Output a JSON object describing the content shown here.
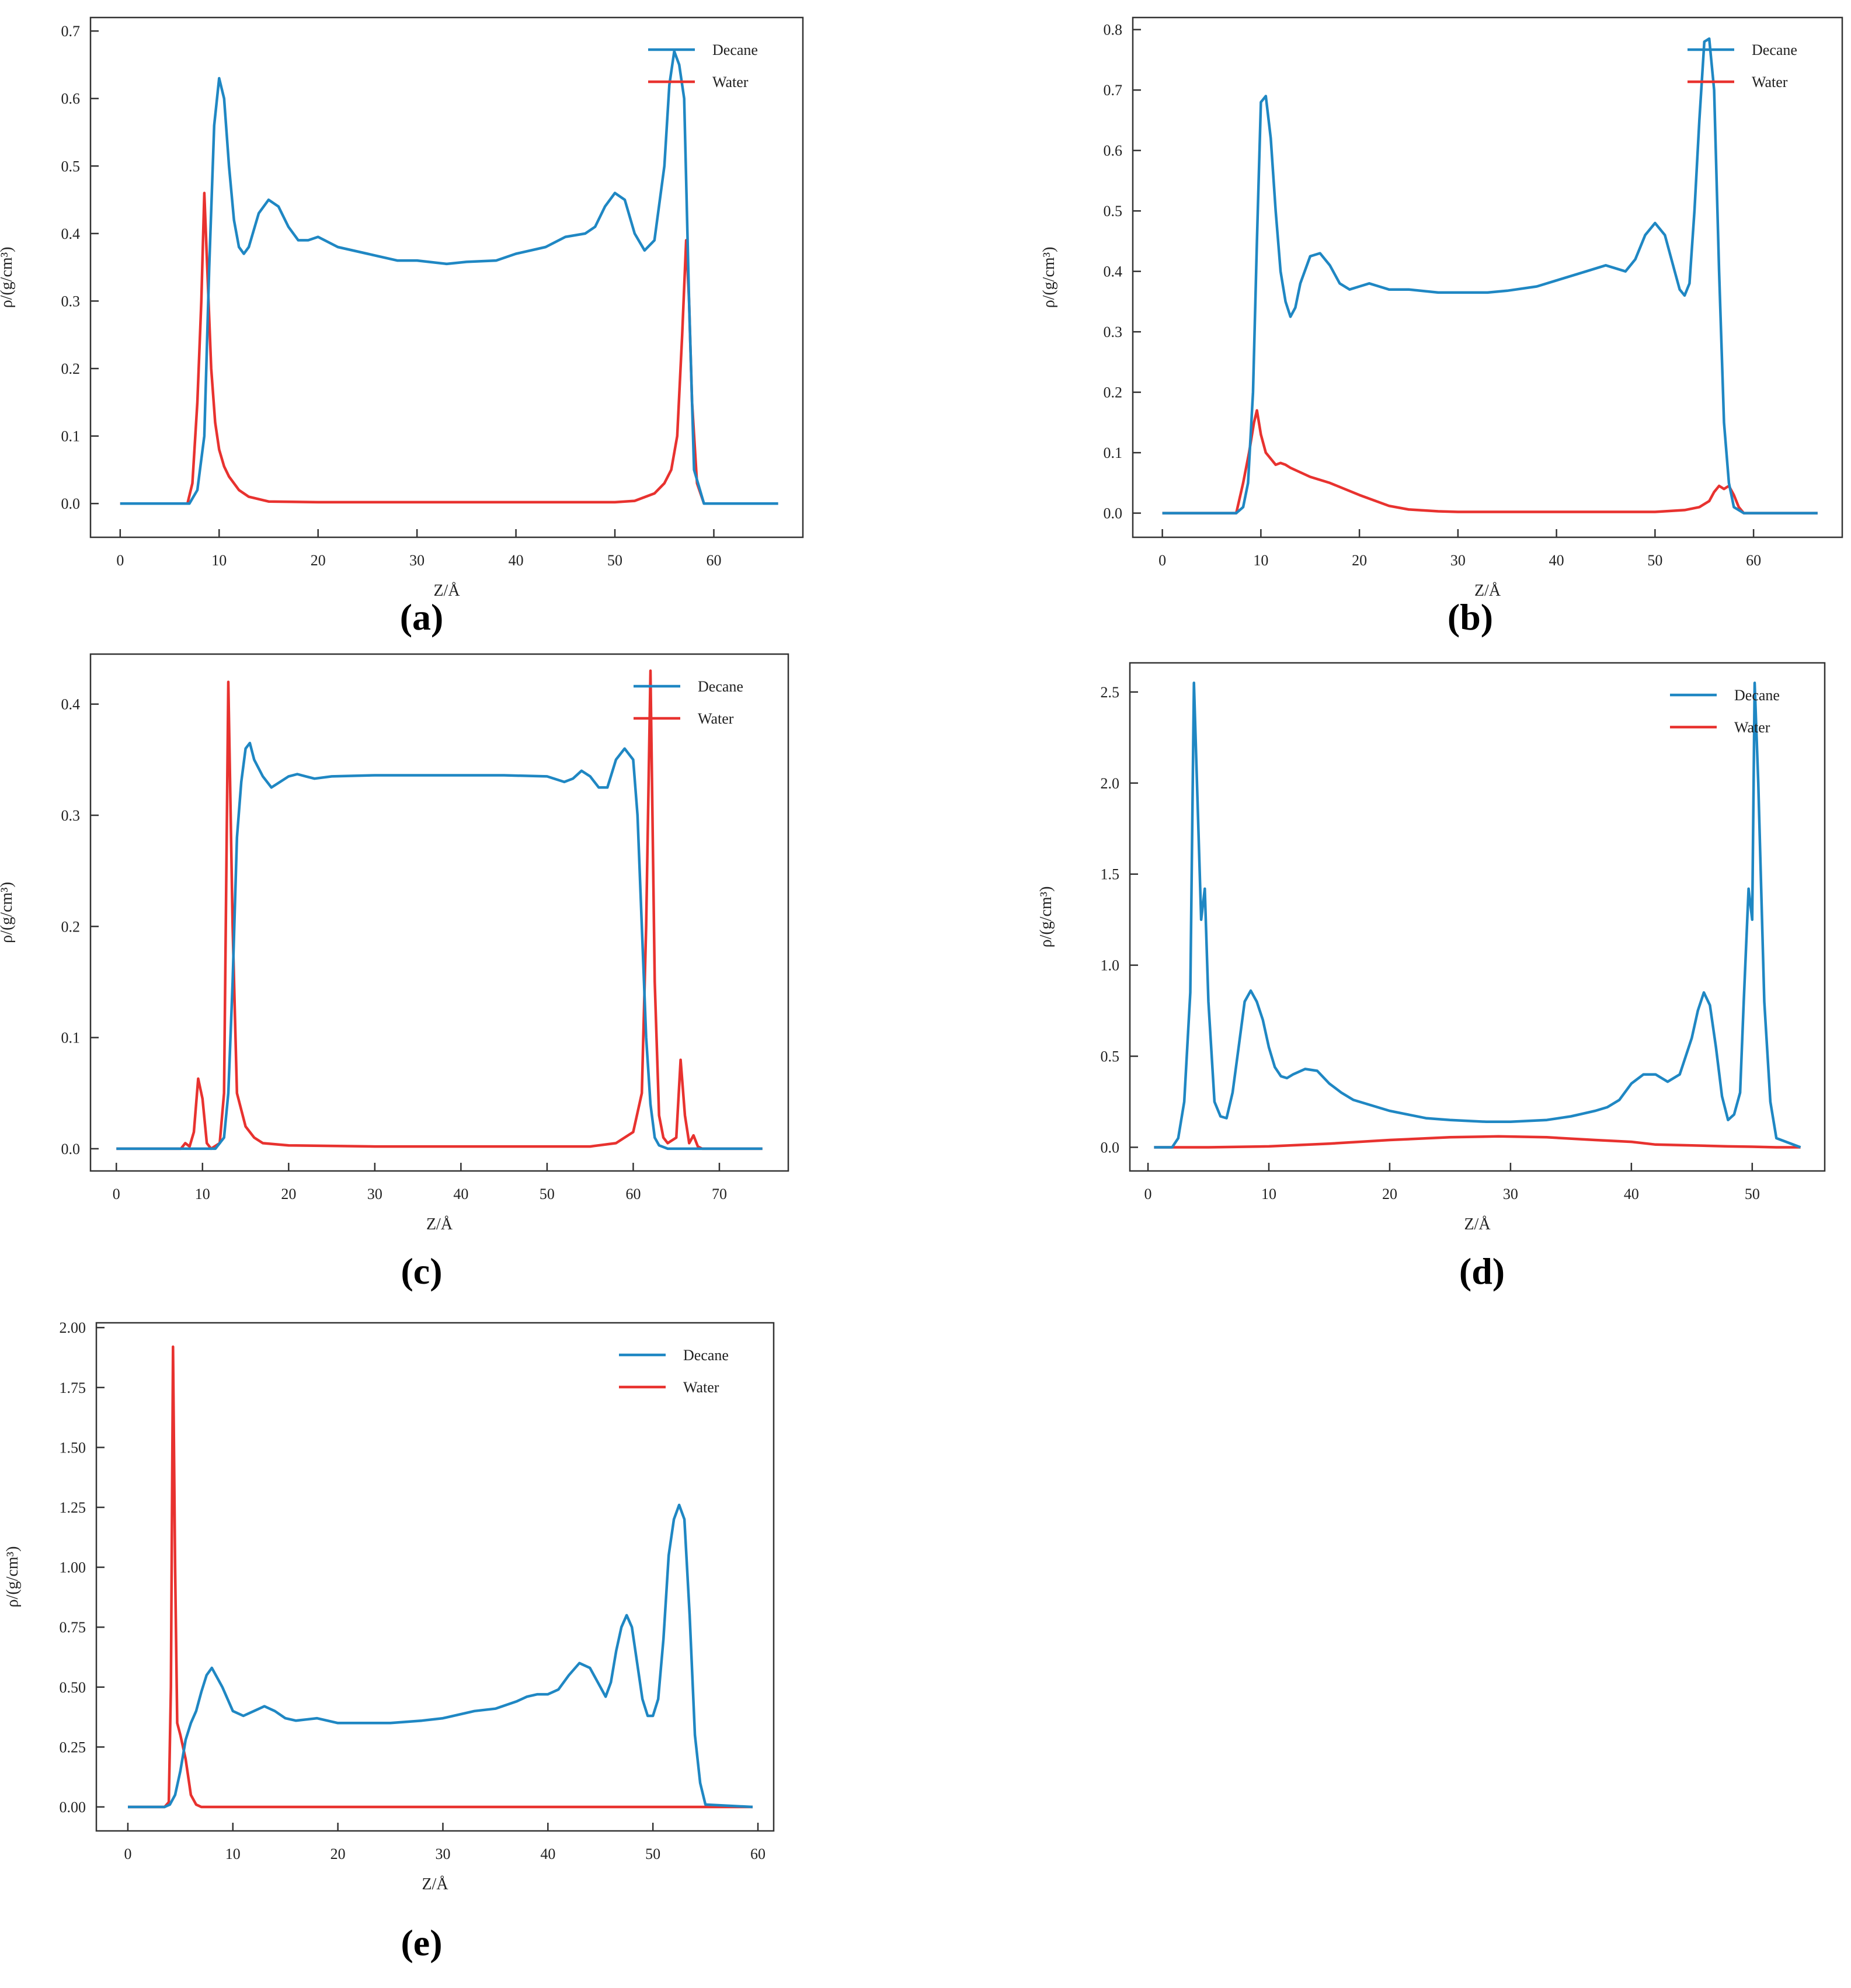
{
  "figure": {
    "panels": [
      {
        "caption": "(a)",
        "ylabel": "ρ/(g/cm³)",
        "xlabel": "Z/Å",
        "legend": [
          "Decane",
          "Water"
        ]
      },
      {
        "caption": "(b)",
        "ylabel": "ρ/(g/cm³)",
        "xlabel": "Z/Å",
        "legend": [
          "Decane",
          "Water"
        ]
      },
      {
        "caption": "(c)",
        "ylabel": "ρ/(g/cm³)",
        "xlabel": "Z/Å",
        "legend": [
          "Decane",
          "Water"
        ]
      },
      {
        "caption": "(d)",
        "ylabel": "ρ/(g/cm³)",
        "xlabel": "Z/Å",
        "legend": [
          "Decane",
          "Water"
        ]
      },
      {
        "caption": "(e)",
        "ylabel": "ρ/(g/cm³)",
        "xlabel": "Z/Å",
        "legend": [
          "Decane",
          "Water"
        ]
      }
    ]
  },
  "colors": {
    "decane": "#1f87c3",
    "water": "#e8322f"
  },
  "chart_data": [
    {
      "type": "line",
      "xlabel": "Z/Å",
      "ylabel": "ρ/(g/cm³)",
      "xlim": [
        -3,
        69
      ],
      "ylim": [
        -0.05,
        0.72
      ],
      "xticks": [
        0,
        10,
        20,
        30,
        40,
        50,
        60
      ],
      "yticks": [
        0.0,
        0.1,
        0.2,
        0.3,
        0.4,
        0.5,
        0.6,
        0.7
      ],
      "yticklabels": [
        "0.0",
        "0.1",
        "0.2",
        "0.3",
        "0.4",
        "0.5",
        "0.6",
        "0.7"
      ],
      "legend": "top-right",
      "series": [
        {
          "name": "Decane",
          "x": [
            0,
            7,
            7.8,
            8.5,
            9,
            9.5,
            10,
            10.5,
            11,
            11.5,
            12,
            12.5,
            13,
            14,
            15,
            16,
            17,
            18,
            19,
            20,
            22,
            25,
            28,
            30,
            33,
            35,
            38,
            40,
            43,
            45,
            47,
            48,
            49,
            50,
            51,
            52,
            53,
            54,
            55,
            55.5,
            56,
            56.5,
            57,
            57.5,
            58,
            59,
            66.5
          ],
          "y": [
            0,
            0,
            0.02,
            0.1,
            0.35,
            0.56,
            0.63,
            0.6,
            0.5,
            0.42,
            0.38,
            0.37,
            0.38,
            0.43,
            0.45,
            0.44,
            0.41,
            0.39,
            0.39,
            0.395,
            0.38,
            0.37,
            0.36,
            0.36,
            0.355,
            0.358,
            0.36,
            0.37,
            0.38,
            0.395,
            0.4,
            0.41,
            0.44,
            0.46,
            0.45,
            0.4,
            0.375,
            0.39,
            0.5,
            0.62,
            0.67,
            0.65,
            0.6,
            0.3,
            0.05,
            0,
            0
          ]
        },
        {
          "name": "Water",
          "x": [
            0,
            6.8,
            7.3,
            7.8,
            8.2,
            8.5,
            8.8,
            9.2,
            9.6,
            10,
            10.5,
            11,
            12,
            13,
            15,
            20,
            30,
            40,
            50,
            52,
            54,
            55,
            55.7,
            56.3,
            56.8,
            57.2,
            57.5,
            57.8,
            58.3,
            59,
            66.5
          ],
          "y": [
            0,
            0,
            0.03,
            0.15,
            0.3,
            0.46,
            0.35,
            0.2,
            0.12,
            0.08,
            0.055,
            0.04,
            0.02,
            0.01,
            0.003,
            0.002,
            0.002,
            0.002,
            0.002,
            0.004,
            0.015,
            0.03,
            0.05,
            0.1,
            0.25,
            0.39,
            0.3,
            0.15,
            0.03,
            0,
            0
          ]
        }
      ]
    },
    {
      "type": "line",
      "xlabel": "Z/Å",
      "ylabel": "ρ/(g/cm³)",
      "xlim": [
        -3,
        69
      ],
      "ylim": [
        -0.04,
        0.82
      ],
      "xticks": [
        0,
        10,
        20,
        30,
        40,
        50,
        60
      ],
      "yticks": [
        0.0,
        0.1,
        0.2,
        0.3,
        0.4,
        0.5,
        0.6,
        0.7,
        0.8
      ],
      "yticklabels": [
        "0.0",
        "0.1",
        "0.2",
        "0.3",
        "0.4",
        "0.5",
        "0.6",
        "0.7",
        "0.8"
      ],
      "legend": "top-right",
      "series": [
        {
          "name": "Decane",
          "x": [
            0,
            7.5,
            8.2,
            8.7,
            9.2,
            9.6,
            10,
            10.5,
            11,
            11.5,
            12,
            12.5,
            13,
            13.5,
            14,
            15,
            16,
            17,
            18,
            19,
            20,
            21,
            22,
            23,
            25,
            28,
            30,
            33,
            35,
            38,
            40,
            43,
            45,
            47,
            48,
            49,
            50,
            51,
            52,
            52.5,
            53,
            53.5,
            54,
            54.5,
            55,
            55.5,
            56,
            56.5,
            57,
            57.5,
            58,
            59,
            66.5
          ],
          "y": [
            0,
            0,
            0.01,
            0.05,
            0.2,
            0.45,
            0.68,
            0.69,
            0.62,
            0.5,
            0.4,
            0.35,
            0.325,
            0.34,
            0.38,
            0.425,
            0.43,
            0.41,
            0.38,
            0.37,
            0.375,
            0.38,
            0.375,
            0.37,
            0.37,
            0.365,
            0.365,
            0.365,
            0.368,
            0.375,
            0.385,
            0.4,
            0.41,
            0.4,
            0.42,
            0.46,
            0.48,
            0.46,
            0.4,
            0.37,
            0.36,
            0.38,
            0.5,
            0.65,
            0.78,
            0.785,
            0.7,
            0.4,
            0.15,
            0.05,
            0.01,
            0,
            0
          ]
        },
        {
          "name": "Water",
          "x": [
            0,
            7.5,
            8.2,
            8.8,
            9.3,
            9.6,
            10,
            10.5,
            11,
            11.5,
            12,
            12.5,
            13,
            15,
            17,
            20,
            23,
            25,
            28,
            30,
            40,
            50,
            53,
            54.5,
            55.5,
            56,
            56.5,
            57,
            57.5,
            58,
            58.5,
            59,
            66.5
          ],
          "y": [
            0,
            0,
            0.05,
            0.1,
            0.15,
            0.17,
            0.13,
            0.1,
            0.09,
            0.08,
            0.083,
            0.08,
            0.075,
            0.06,
            0.05,
            0.03,
            0.012,
            0.006,
            0.003,
            0.002,
            0.002,
            0.002,
            0.005,
            0.01,
            0.02,
            0.035,
            0.045,
            0.04,
            0.045,
            0.03,
            0.01,
            0,
            0
          ]
        }
      ]
    },
    {
      "type": "line",
      "xlabel": "Z/Å",
      "ylabel": "ρ/(g/cm³)",
      "xlim": [
        -3,
        78
      ],
      "ylim": [
        -0.02,
        0.445
      ],
      "xticks": [
        0,
        10,
        20,
        30,
        40,
        50,
        60,
        70
      ],
      "yticks": [
        0.0,
        0.1,
        0.2,
        0.3,
        0.4
      ],
      "yticklabels": [
        "0.0",
        "0.1",
        "0.2",
        "0.3",
        "0.4"
      ],
      "legend": "top-right",
      "series": [
        {
          "name": "Decane",
          "x": [
            0,
            11.5,
            12.5,
            13,
            13.5,
            14,
            14.5,
            15,
            15.5,
            16,
            17,
            18,
            19,
            20,
            21,
            22,
            23,
            25,
            30,
            35,
            40,
            45,
            50,
            52,
            53,
            54,
            55,
            56,
            57,
            58,
            59,
            60,
            60.5,
            61,
            61.5,
            62,
            62.5,
            63,
            64,
            75
          ],
          "y": [
            0,
            0,
            0.01,
            0.05,
            0.15,
            0.28,
            0.33,
            0.36,
            0.365,
            0.35,
            0.335,
            0.325,
            0.33,
            0.335,
            0.337,
            0.335,
            0.333,
            0.335,
            0.336,
            0.336,
            0.336,
            0.336,
            0.335,
            0.33,
            0.333,
            0.34,
            0.335,
            0.325,
            0.325,
            0.35,
            0.36,
            0.35,
            0.3,
            0.2,
            0.1,
            0.04,
            0.01,
            0.003,
            0,
            0
          ]
        },
        {
          "name": "Water",
          "x": [
            0,
            7.5,
            8,
            8.5,
            9,
            9.5,
            10,
            10.5,
            11,
            12,
            12.5,
            13,
            13.5,
            14,
            15,
            16,
            17,
            20,
            30,
            40,
            50,
            55,
            58,
            60,
            61,
            61.5,
            62,
            62.5,
            63,
            63.5,
            64,
            65,
            65.5,
            66,
            66.5,
            67,
            67.5,
            68,
            75
          ],
          "y": [
            0,
            0,
            0.005,
            0.002,
            0.015,
            0.063,
            0.045,
            0.005,
            0,
            0.005,
            0.05,
            0.42,
            0.2,
            0.05,
            0.02,
            0.01,
            0.005,
            0.003,
            0.002,
            0.002,
            0.002,
            0.002,
            0.005,
            0.015,
            0.05,
            0.2,
            0.43,
            0.15,
            0.03,
            0.01,
            0.005,
            0.01,
            0.08,
            0.03,
            0.005,
            0.012,
            0.002,
            0,
            0
          ]
        }
      ]
    },
    {
      "type": "line",
      "xlabel": "Z/Å",
      "ylabel": "ρ/(g/cm³)",
      "xlim": [
        -1.5,
        56
      ],
      "ylim": [
        -0.13,
        2.66
      ],
      "xticks": [
        0,
        10,
        20,
        30,
        40,
        50
      ],
      "yticks": [
        0.0,
        0.5,
        1.0,
        1.5,
        2.0,
        2.5
      ],
      "yticklabels": [
        "0.0",
        "0.5",
        "1.0",
        "1.5",
        "2.0",
        "2.5"
      ],
      "legend": "top-right",
      "series": [
        {
          "name": "Decane",
          "x": [
            0.5,
            2,
            2.5,
            3,
            3.5,
            3.8,
            4.1,
            4.4,
            4.7,
            5,
            5.5,
            6,
            6.5,
            7,
            7.5,
            8,
            8.5,
            9,
            9.5,
            10,
            10.5,
            11,
            11.5,
            12,
            13,
            14,
            15,
            16,
            17,
            20,
            23,
            25,
            28,
            30,
            33,
            35,
            37,
            38,
            39,
            40,
            41,
            42,
            43,
            44,
            45,
            45.5,
            46,
            46.5,
            47,
            47.5,
            48,
            48.5,
            49,
            49.3,
            49.7,
            50,
            50.2,
            50.5,
            51,
            51.5,
            52,
            54
          ],
          "y": [
            0,
            0,
            0.05,
            0.25,
            0.85,
            2.55,
            1.9,
            1.25,
            1.42,
            0.8,
            0.25,
            0.17,
            0.16,
            0.3,
            0.55,
            0.8,
            0.86,
            0.8,
            0.7,
            0.55,
            0.44,
            0.39,
            0.38,
            0.4,
            0.43,
            0.42,
            0.35,
            0.3,
            0.26,
            0.2,
            0.16,
            0.15,
            0.14,
            0.14,
            0.15,
            0.17,
            0.2,
            0.22,
            0.26,
            0.35,
            0.4,
            0.4,
            0.36,
            0.4,
            0.6,
            0.75,
            0.85,
            0.78,
            0.55,
            0.28,
            0.15,
            0.18,
            0.3,
            0.8,
            1.42,
            1.25,
            2.55,
            2,
            0.8,
            0.25,
            0.05,
            0
          ]
        },
        {
          "name": "Water",
          "x": [
            0.5,
            5,
            10,
            15,
            20,
            25,
            29,
            33,
            37,
            40,
            42,
            45,
            48,
            50,
            52,
            54
          ],
          "y": [
            0,
            0,
            0.005,
            0.02,
            0.04,
            0.055,
            0.06,
            0.055,
            0.04,
            0.03,
            0.015,
            0.01,
            0.005,
            0.003,
            0,
            0
          ]
        }
      ]
    },
    {
      "type": "line",
      "xlabel": "Z/Å",
      "ylabel": "ρ/(g/cm³)",
      "xlim": [
        -3,
        61.5
      ],
      "ylim": [
        -0.1,
        2.02
      ],
      "xticks": [
        0,
        10,
        20,
        30,
        40,
        50,
        60
      ],
      "yticks": [
        0.0,
        0.25,
        0.5,
        0.75,
        1.0,
        1.25,
        1.5,
        1.75,
        2.0
      ],
      "yticklabels": [
        "0.00",
        "0.25",
        "0.50",
        "0.75",
        "1.00",
        "1.25",
        "1.50",
        "1.75",
        "2.00"
      ],
      "legend": "top-right",
      "series": [
        {
          "name": "Decane",
          "x": [
            0,
            3.5,
            4,
            4.5,
            5,
            5.5,
            6,
            6.5,
            7,
            7.5,
            8,
            9,
            10,
            11,
            12,
            13,
            14,
            15,
            16,
            17,
            18,
            20,
            23,
            25,
            28,
            30,
            33,
            35,
            37,
            38,
            39,
            40,
            41,
            42,
            43,
            44,
            45,
            45.5,
            46,
            46.5,
            47,
            47.5,
            48,
            48.5,
            49,
            49.5,
            50,
            50.5,
            51,
            51.5,
            52,
            52.5,
            53,
            53.5,
            54,
            54.5,
            55,
            59.5
          ],
          "y": [
            0,
            0,
            0.01,
            0.05,
            0.15,
            0.28,
            0.35,
            0.4,
            0.48,
            0.55,
            0.58,
            0.5,
            0.4,
            0.38,
            0.4,
            0.42,
            0.4,
            0.37,
            0.36,
            0.365,
            0.37,
            0.35,
            0.35,
            0.35,
            0.36,
            0.37,
            0.4,
            0.41,
            0.44,
            0.46,
            0.47,
            0.47,
            0.49,
            0.55,
            0.6,
            0.58,
            0.5,
            0.46,
            0.52,
            0.65,
            0.75,
            0.8,
            0.75,
            0.6,
            0.45,
            0.38,
            0.38,
            0.45,
            0.7,
            1.05,
            1.2,
            1.26,
            1.2,
            0.8,
            0.3,
            0.1,
            0.01,
            0
          ]
        },
        {
          "name": "Water",
          "x": [
            0,
            3.5,
            3.9,
            4.1,
            4.3,
            4.5,
            4.7,
            5,
            5.5,
            6,
            6.5,
            7,
            10,
            20,
            30,
            40,
            50,
            55,
            59.5
          ],
          "y": [
            0,
            0,
            0.02,
            0.5,
            1.92,
            1.0,
            0.35,
            0.3,
            0.2,
            0.05,
            0.01,
            0,
            0,
            0,
            0,
            0,
            0,
            0,
            0
          ]
        }
      ]
    }
  ]
}
